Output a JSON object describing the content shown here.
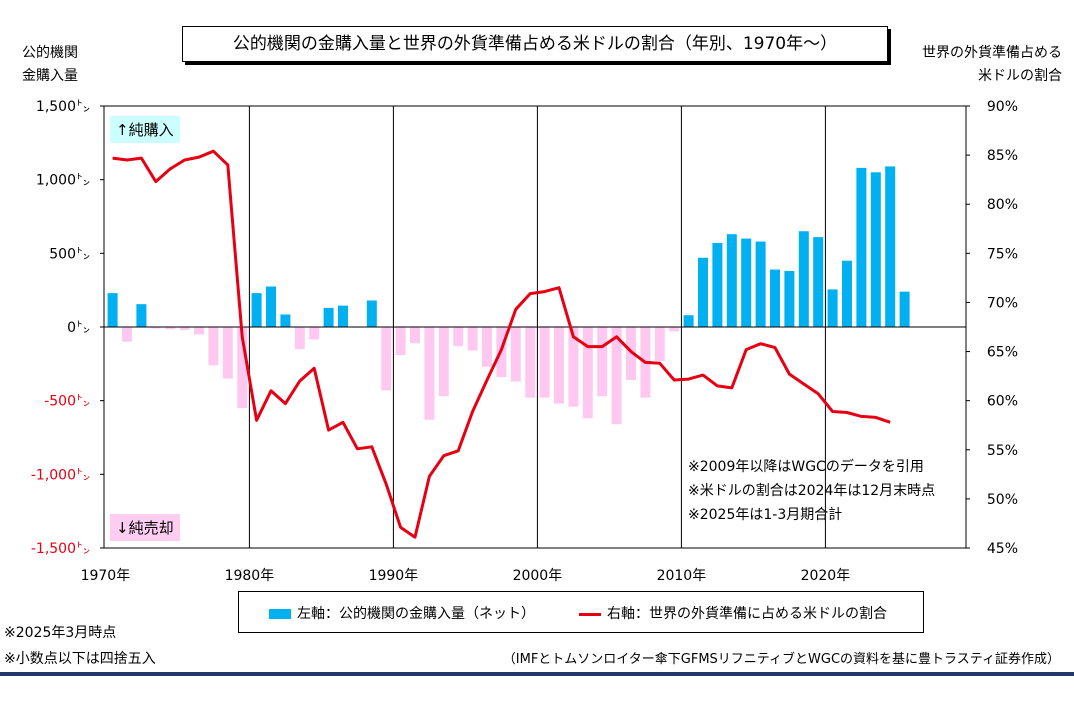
{
  "chart_data": {
    "type": "bar+line",
    "title": "公的機関の金購入量と世界の外貨準備占める米ドルの割合（年別、1970年～）",
    "left_axis_label": [
      "公的機関",
      "金購入量"
    ],
    "right_axis_label": [
      "世界の外貨準備占める",
      "米ドルの割合"
    ],
    "left_ticks": [
      "1,500㌧",
      "1,000㌧",
      "500㌧",
      "0㌧",
      "-500㌧",
      "-1,000㌧",
      "-1,500㌧"
    ],
    "left_tick_values": [
      1500,
      1000,
      500,
      0,
      -500,
      -1000,
      -1500
    ],
    "right_ticks": [
      "90%",
      "85%",
      "80%",
      "75%",
      "70%",
      "65%",
      "60%",
      "55%",
      "50%",
      "45%"
    ],
    "right_tick_values": [
      90,
      85,
      80,
      75,
      70,
      65,
      60,
      55,
      50,
      45
    ],
    "x_ticks": [
      "1970年",
      "1980年",
      "1990年",
      "2000年",
      "2010年",
      "2020年"
    ],
    "x_tick_values": [
      1970,
      1980,
      1990,
      2000,
      2010,
      2020
    ],
    "ylim_left": [
      -1500,
      1500
    ],
    "ylim_right": [
      45,
      90
    ],
    "vertical_gridlines": [
      1980,
      1990,
      2000,
      2010,
      2020
    ],
    "years": [
      1970,
      1971,
      1972,
      1973,
      1974,
      1975,
      1976,
      1977,
      1978,
      1979,
      1980,
      1981,
      1982,
      1983,
      1984,
      1985,
      1986,
      1987,
      1988,
      1989,
      1990,
      1991,
      1992,
      1993,
      1994,
      1995,
      1996,
      1997,
      1998,
      1999,
      2000,
      2001,
      2002,
      2003,
      2004,
      2005,
      2006,
      2007,
      2008,
      2009,
      2010,
      2011,
      2012,
      2013,
      2014,
      2015,
      2016,
      2017,
      2018,
      2019,
      2020,
      2021,
      2022,
      2023,
      2024,
      2025
    ],
    "series": [
      {
        "name": "左軸：公的機関の金購入量（ネット）",
        "axis": "left",
        "color_positive": "#00b0f0",
        "color_negative": "#ffc8f0",
        "values": [
          230,
          -100,
          155,
          -10,
          -15,
          -20,
          -50,
          -260,
          -350,
          -550,
          230,
          275,
          85,
          -150,
          -85,
          130,
          145,
          -5,
          180,
          -430,
          -190,
          -110,
          -630,
          -470,
          -130,
          -160,
          -270,
          -340,
          -370,
          -480,
          -480,
          -520,
          -540,
          -620,
          -470,
          -660,
          -360,
          -480,
          -230,
          -30,
          80,
          470,
          570,
          630,
          600,
          580,
          390,
          380,
          650,
          610,
          255,
          450,
          1080,
          1050,
          1090,
          240
        ]
      },
      {
        "name": "右軸：世界の外貨準備に占める米ドルの割合",
        "axis": "right",
        "color": "#e60012",
        "values": [
          84.7,
          84.5,
          84.7,
          82.3,
          83.6,
          84.5,
          84.8,
          85.4,
          84,
          66.5,
          58,
          61,
          59.7,
          62,
          63.3,
          57,
          57.8,
          55.1,
          55.3,
          51.5,
          47.1,
          46.1,
          52.3,
          54.4,
          54.9,
          58.9,
          62.1,
          65.2,
          69.3,
          70.9,
          71.1,
          71.5,
          66.5,
          65.5,
          65.5,
          66.5,
          65,
          63.9,
          63.8,
          62.1,
          62.2,
          62.6,
          61.5,
          61.3,
          65.2,
          65.8,
          65.4,
          62.7,
          61.7,
          60.7,
          58.9,
          58.8,
          58.4,
          58.3,
          57.8
        ]
      }
    ],
    "legend_placement": "bottom"
  },
  "labels": {
    "net_buy": "↑純購入",
    "net_sell": "↓純売却",
    "note1": "※2009年以降はWGCのデータを引用",
    "note2": "※米ドルの割合は2024年は12月末時点",
    "note3": "※2025年は1-3月期合計",
    "foot1": "※2025年3月時点",
    "foot2": "※小数点以下は四捨五入",
    "source": "（IMFとトムソンロイター傘下GFMSリフニティブとWGCの資料を基に豊トラスティ証券作成）"
  },
  "colors": {
    "bar_positive": "#00b0f0",
    "bar_negative": "#ffc8f0",
    "line": "#e60012",
    "buy_label_bg": "#ccffff",
    "sell_label_bg": "#ffccf2",
    "left_negative_tick": "#e60012",
    "rule": "#1f3864"
  }
}
